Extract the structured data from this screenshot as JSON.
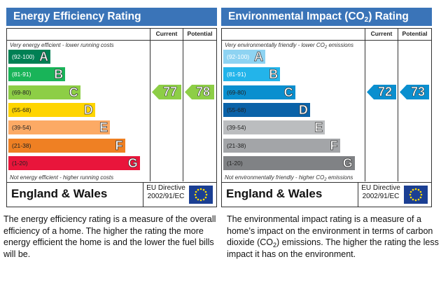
{
  "chart_data": [
    {
      "type": "bar",
      "title": "Energy Efficiency Rating",
      "column_headers": [
        "Current",
        "Potential"
      ],
      "top_note": "Very energy efficient - lower running costs",
      "bottom_note": "Not energy efficient - higher running costs",
      "categories": [
        "A",
        "B",
        "C",
        "D",
        "E",
        "F",
        "G"
      ],
      "ranges": [
        "(92-100)",
        "(81-91)",
        "(69-80)",
        "(55-68)",
        "(39-54)",
        "(21-38)",
        "(1-20)"
      ],
      "colors": [
        "#008054",
        "#19b459",
        "#8dce46",
        "#ffd500",
        "#fcaa65",
        "#ef8023",
        "#e9153b"
      ],
      "current": 77,
      "potential": 78,
      "arrow_color": "#8dce46",
      "region": "England & Wales",
      "directive_line1": "EU Directive",
      "directive_line2": "2002/91/EC"
    },
    {
      "type": "bar",
      "title_prefix": "Environmental Impact (CO",
      "title_sub": "2",
      "title_suffix": ") Rating",
      "column_headers": [
        "Current",
        "Potential"
      ],
      "top_note_prefix": "Very environmentally friendly - lower CO",
      "top_note_sub": "2",
      "top_note_suffix": " emissions",
      "bottom_note_prefix": "Not environmentally friendly - higher CO",
      "bottom_note_sub": "2",
      "bottom_note_suffix": " emissions",
      "categories": [
        "A",
        "B",
        "C",
        "D",
        "E",
        "F",
        "G"
      ],
      "ranges": [
        "(92-100)",
        "(81-91)",
        "(69-80)",
        "(55-68)",
        "(39-54)",
        "(21-38)",
        "(1-20)"
      ],
      "colors": [
        "#8ed3f2",
        "#23b4ea",
        "#0a8fcf",
        "#0a62a8",
        "#bbbdbf",
        "#a3a5a8",
        "#808285"
      ],
      "current": 72,
      "potential": 73,
      "arrow_color": "#0a8fcf",
      "region": "England & Wales",
      "directive_line1": "EU Directive",
      "directive_line2": "2002/91/EC"
    }
  ],
  "descriptions": {
    "energy": "The energy efficiency rating is a measure of the overall efficiency of a home. The higher the rating the more energy efficient the home is and the lower the fuel bills will be.",
    "environment_part1": "The environmental impact rating is a measure of a home’s impact on the environment in terms of carbon dioxide (CO",
    "environment_sub": "2",
    "environment_part2": ") emissions. The higher the rating the less impact it has on the environment."
  }
}
